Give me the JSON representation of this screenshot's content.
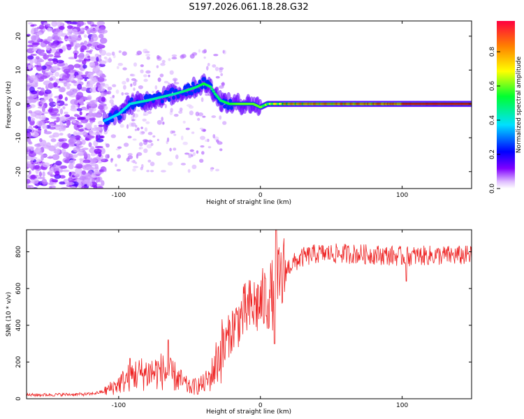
{
  "chart_data": [
    {
      "type": "heatmap",
      "title": "S197.2026.061.18.28.G32",
      "xlabel": "Height of straight line (km)",
      "ylabel": "Frequency (Hz)",
      "xlim": [
        -165,
        149
      ],
      "ylim": [
        -25,
        24.5
      ],
      "xticks": [
        -100,
        0,
        100
      ],
      "yticks": [
        -20,
        -10,
        0,
        10,
        20
      ],
      "colorbar": {
        "label": "Normalized spectral amplitude",
        "range": [
          0,
          0.98
        ],
        "ticks": [
          0.0,
          0.2,
          0.4,
          0.6,
          0.8
        ]
      },
      "ridge": [
        {
          "x": -110,
          "f": -5,
          "a": 0.35
        },
        {
          "x": -100,
          "f": -3,
          "a": 0.4
        },
        {
          "x": -92,
          "f": 0,
          "a": 0.4
        },
        {
          "x": -80,
          "f": 1,
          "a": 0.45
        },
        {
          "x": -70,
          "f": 2,
          "a": 0.45
        },
        {
          "x": -60,
          "f": 3,
          "a": 0.45
        },
        {
          "x": -52,
          "f": 4,
          "a": 0.5
        },
        {
          "x": -45,
          "f": 5,
          "a": 0.5
        },
        {
          "x": -40,
          "f": 6,
          "a": 0.55
        },
        {
          "x": -35,
          "f": 5,
          "a": 0.5
        },
        {
          "x": -32,
          "f": 3,
          "a": 0.5
        },
        {
          "x": -28,
          "f": 1,
          "a": 0.5
        },
        {
          "x": -22,
          "f": 0,
          "a": 0.55
        },
        {
          "x": -15,
          "f": 0,
          "a": 0.6
        },
        {
          "x": -5,
          "f": 0,
          "a": 0.6
        },
        {
          "x": 0,
          "f": -1,
          "a": 0.6
        },
        {
          "x": 5,
          "f": 0,
          "a": 0.6
        },
        {
          "x": 20,
          "f": 0,
          "a": 0.7
        },
        {
          "x": 50,
          "f": 0,
          "a": 0.75
        },
        {
          "x": 80,
          "f": 0,
          "a": 0.75
        },
        {
          "x": 110,
          "f": 0,
          "a": 0.85
        },
        {
          "x": 149,
          "f": 0,
          "a": 0.95
        }
      ]
    },
    {
      "type": "line",
      "xlabel": "Height of straight line (km)",
      "ylabel": "SNR (10 * v/v)",
      "xlim": [
        -165,
        149
      ],
      "ylim": [
        0,
        920
      ],
      "xticks": [
        -100,
        0,
        100
      ],
      "yticks": [
        0,
        200,
        400,
        600,
        800
      ],
      "color": "#ee2222",
      "envelope": [
        {
          "x": -165,
          "y": 20
        },
        {
          "x": -120,
          "y": 25
        },
        {
          "x": -110,
          "y": 40
        },
        {
          "x": -100,
          "y": 80
        },
        {
          "x": -90,
          "y": 130
        },
        {
          "x": -80,
          "y": 140
        },
        {
          "x": -70,
          "y": 150
        },
        {
          "x": -60,
          "y": 120
        },
        {
          "x": -50,
          "y": 60
        },
        {
          "x": -40,
          "y": 80
        },
        {
          "x": -35,
          "y": 120
        },
        {
          "x": -30,
          "y": 220
        },
        {
          "x": -25,
          "y": 300
        },
        {
          "x": -20,
          "y": 380
        },
        {
          "x": -10,
          "y": 480
        },
        {
          "x": 0,
          "y": 520
        },
        {
          "x": 10,
          "y": 580
        },
        {
          "x": 15,
          "y": 650
        },
        {
          "x": 20,
          "y": 720
        },
        {
          "x": 30,
          "y": 770
        },
        {
          "x": 40,
          "y": 790
        },
        {
          "x": 60,
          "y": 790
        },
        {
          "x": 80,
          "y": 785
        },
        {
          "x": 100,
          "y": 775
        },
        {
          "x": 120,
          "y": 780
        },
        {
          "x": 149,
          "y": 780
        }
      ],
      "features": [
        {
          "x": 11,
          "y": 920
        },
        {
          "x": 10,
          "y": 300
        },
        {
          "x": 103,
          "y": 640
        },
        {
          "x": -65,
          "y": 320
        },
        {
          "x": -92,
          "y": 220
        }
      ]
    }
  ]
}
